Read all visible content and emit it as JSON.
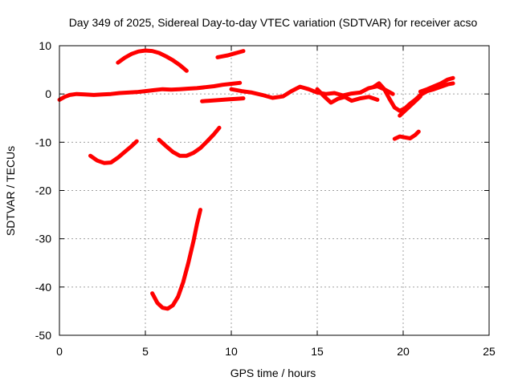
{
  "chart_data": {
    "type": "line",
    "title": "Day 349 of 2025, Sidereal Day-to-day VTEC variation (SDTVAR) for receiver acso",
    "xlabel": "GPS time / hours",
    "ylabel": "SDTVAR / TECUs",
    "xlim": [
      0,
      25
    ],
    "ylim": [
      -50,
      10
    ],
    "xticks": [
      0,
      5,
      10,
      15,
      20,
      25
    ],
    "yticks": [
      -50,
      -40,
      -30,
      -20,
      -10,
      0,
      10
    ],
    "xtick_labels": [
      "0",
      "5",
      "10",
      "15",
      "20",
      "25"
    ],
    "ytick_labels": [
      "-50",
      "-40",
      "-30",
      "-20",
      "-10",
      "0",
      "10"
    ],
    "grid": true,
    "legend": "none",
    "series_color": "#ff0000",
    "series": [
      {
        "name": "track-1",
        "x": [
          0.0,
          0.3,
          0.6,
          1.0,
          1.5,
          2.0,
          2.5,
          3.0,
          3.5,
          4.0,
          4.5,
          5.0,
          5.5,
          6.0,
          6.5,
          7.0,
          7.5,
          8.0,
          8.5,
          9.0,
          9.5,
          10.0,
          10.5
        ],
        "y": [
          -1.2,
          -0.6,
          -0.2,
          0.0,
          -0.1,
          -0.2,
          -0.1,
          0.0,
          0.2,
          0.3,
          0.4,
          0.6,
          0.8,
          1.0,
          0.9,
          1.0,
          1.1,
          1.2,
          1.4,
          1.6,
          1.9,
          2.1,
          2.3
        ]
      },
      {
        "name": "track-2",
        "x": [
          3.4,
          3.8,
          4.2,
          4.6,
          5.0,
          5.4,
          5.8,
          6.2,
          6.6,
          7.0,
          7.4
        ],
        "y": [
          6.5,
          7.5,
          8.3,
          8.8,
          9.0,
          8.9,
          8.5,
          7.8,
          7.0,
          6.0,
          4.8
        ]
      },
      {
        "name": "track-3",
        "x": [
          9.2,
          9.5,
          9.8,
          10.1,
          10.4,
          10.7
        ],
        "y": [
          7.6,
          7.8,
          8.0,
          8.3,
          8.6,
          8.9
        ]
      },
      {
        "name": "track-4",
        "x": [
          8.3,
          8.7,
          9.1,
          9.5,
          9.9,
          10.3,
          10.7
        ],
        "y": [
          -1.5,
          -1.4,
          -1.3,
          -1.2,
          -1.1,
          -1.0,
          -0.9
        ]
      },
      {
        "name": "track-5",
        "x": [
          10.0,
          10.6,
          11.2,
          11.8,
          12.4,
          13.0,
          13.5,
          14.0,
          14.5,
          15.0,
          15.5,
          16.0,
          16.5,
          17.0,
          17.5,
          18.0,
          18.5,
          19.0,
          19.4
        ],
        "y": [
          1.0,
          0.6,
          0.3,
          -0.2,
          -0.8,
          -0.5,
          0.6,
          1.5,
          1.0,
          0.3,
          0.0,
          0.2,
          -0.3,
          0.1,
          0.3,
          1.2,
          1.6,
          0.8,
          0.0
        ]
      },
      {
        "name": "track-6",
        "x": [
          15.0,
          15.4,
          15.8,
          16.2,
          16.6,
          17.0,
          17.5,
          18.0,
          18.5
        ],
        "y": [
          1.0,
          -0.5,
          -1.8,
          -1.0,
          -0.6,
          -1.4,
          -0.9,
          -0.6,
          -1.2
        ]
      },
      {
        "name": "track-7",
        "x": [
          18.3,
          18.6,
          18.9,
          19.2,
          19.5,
          19.8,
          20.1,
          20.4,
          20.7,
          21.0,
          21.4,
          21.8,
          22.2,
          22.6,
          22.9
        ],
        "y": [
          1.5,
          2.2,
          1.0,
          -1.0,
          -2.8,
          -3.5,
          -3.0,
          -2.0,
          -1.2,
          -0.2,
          0.6,
          1.0,
          1.5,
          2.0,
          2.2
        ]
      },
      {
        "name": "track-8",
        "x": [
          19.8,
          20.1,
          20.4,
          20.7,
          21.0
        ],
        "y": [
          -4.5,
          -3.5,
          -2.5,
          -1.5,
          -0.5
        ]
      },
      {
        "name": "track-9",
        "x": [
          21.0,
          21.4,
          21.8,
          22.2,
          22.6,
          22.9
        ],
        "y": [
          0.5,
          1.0,
          1.6,
          2.2,
          3.0,
          3.3
        ]
      },
      {
        "name": "track-10",
        "x": [
          19.5,
          19.8,
          20.1,
          20.4,
          20.7,
          20.9
        ],
        "y": [
          -9.3,
          -8.8,
          -9.0,
          -9.2,
          -8.5,
          -7.8
        ]
      },
      {
        "name": "track-11",
        "x": [
          1.8,
          2.2,
          2.6,
          3.0,
          3.4,
          3.8,
          4.2,
          4.5
        ],
        "y": [
          -12.8,
          -13.8,
          -14.3,
          -14.2,
          -13.2,
          -12.0,
          -10.8,
          -9.8
        ]
      },
      {
        "name": "track-12",
        "x": [
          5.8,
          6.2,
          6.6,
          7.0,
          7.4,
          7.8,
          8.2,
          8.6,
          9.0,
          9.3
        ],
        "y": [
          -9.5,
          -10.8,
          -12.0,
          -12.8,
          -12.8,
          -12.2,
          -11.2,
          -9.8,
          -8.3,
          -7.0
        ]
      },
      {
        "name": "track-13",
        "x": [
          5.4,
          5.7,
          6.0,
          6.3,
          6.6,
          6.9,
          7.2,
          7.5,
          7.8,
          8.0,
          8.2
        ],
        "y": [
          -41.3,
          -43.3,
          -44.3,
          -44.5,
          -43.8,
          -42.0,
          -39.0,
          -35.0,
          -30.5,
          -27.0,
          -24.0
        ]
      }
    ]
  }
}
